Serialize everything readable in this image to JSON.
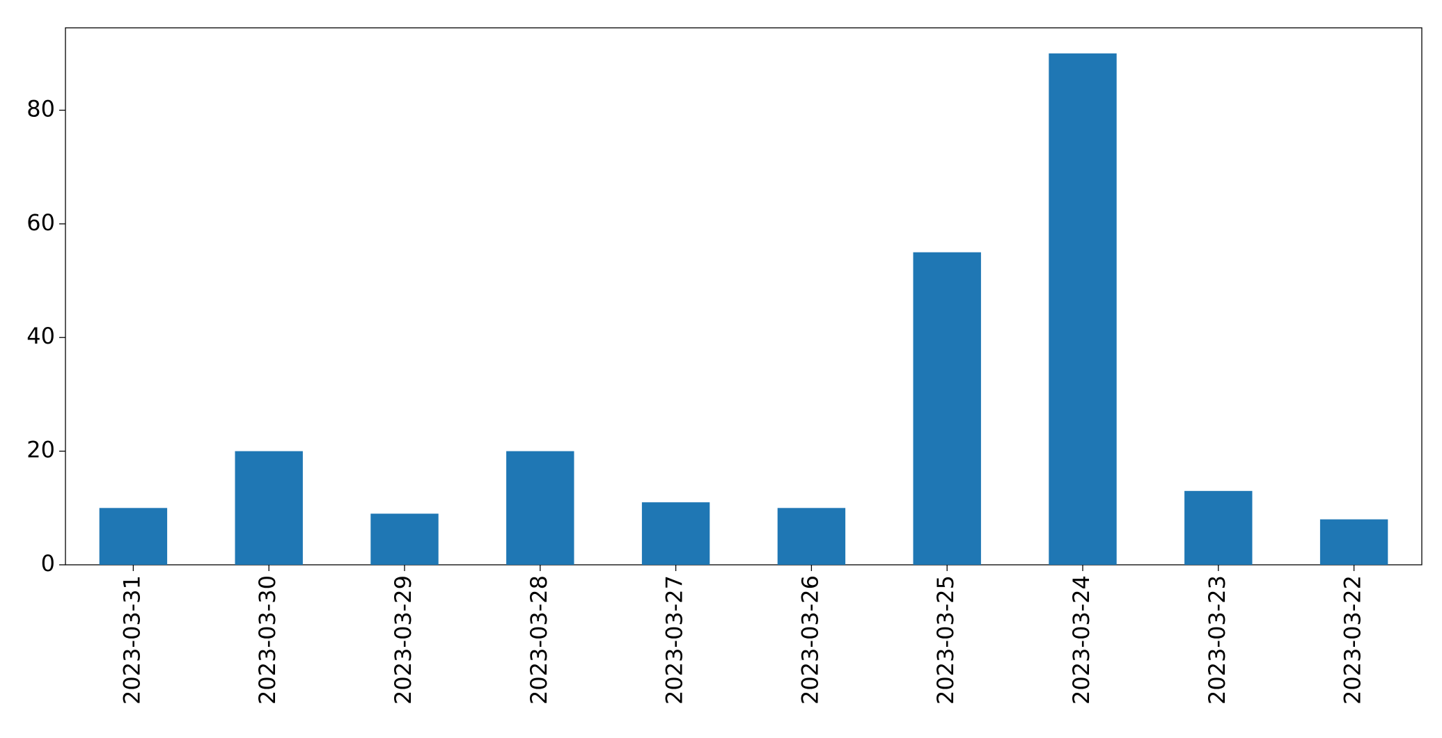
{
  "chart_data": {
    "type": "bar",
    "categories": [
      "2023-03-31",
      "2023-03-30",
      "2023-03-29",
      "2023-03-28",
      "2023-03-27",
      "2023-03-26",
      "2023-03-25",
      "2023-03-24",
      "2023-03-23",
      "2023-03-22"
    ],
    "values": [
      10,
      20,
      9,
      20,
      11,
      10,
      55,
      90,
      13,
      8
    ],
    "color": "#1f77b4",
    "ylim": [
      0,
      94.5
    ],
    "yticks": [
      0,
      20,
      40,
      60,
      80
    ],
    "grid": false
  }
}
